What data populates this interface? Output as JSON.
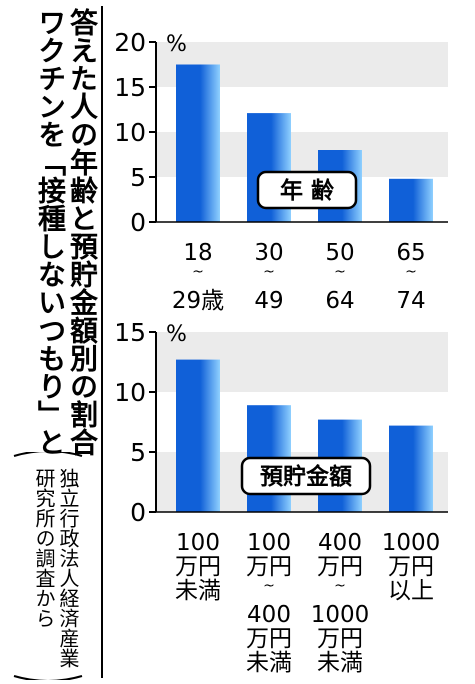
{
  "title": {
    "line1": "ワクチンを「接種しないつもり」と",
    "line2": "答えた人の年齢と預貯金額別の割合"
  },
  "source": {
    "line1": "独立行政法人経済産業",
    "line2": "研究所の調査から"
  },
  "colors": {
    "bar_dark": "#1060d8",
    "bar_light": "#8fd0ff",
    "grid_band": "#ebebeb",
    "axis": "#000000"
  },
  "chart_data": [
    {
      "type": "bar",
      "legend_label": "年 齢",
      "unit": "%",
      "ylim": [
        0,
        20
      ],
      "yticks": [
        0,
        5,
        10,
        15,
        20
      ],
      "grid": true,
      "categories": [
        [
          "18",
          "~",
          "29歳"
        ],
        [
          "30",
          "~",
          "49"
        ],
        [
          "50",
          "~",
          "64"
        ],
        [
          "65",
          "~",
          "74"
        ]
      ],
      "values": [
        17.5,
        12.1,
        8.0,
        4.8
      ]
    },
    {
      "type": "bar",
      "legend_label": "預貯金額",
      "unit": "%",
      "ylim": [
        0,
        15
      ],
      "yticks": [
        0,
        5,
        10,
        15
      ],
      "grid": true,
      "categories": [
        [
          "100",
          "万円",
          "未満"
        ],
        [
          "100",
          "万円",
          "~",
          "400",
          "万円",
          "未満"
        ],
        [
          "400",
          "万円",
          "~",
          "1000",
          "万円",
          "未満"
        ],
        [
          "1000",
          "万円",
          "以上"
        ]
      ],
      "values": [
        12.7,
        8.9,
        7.7,
        7.2
      ]
    }
  ]
}
